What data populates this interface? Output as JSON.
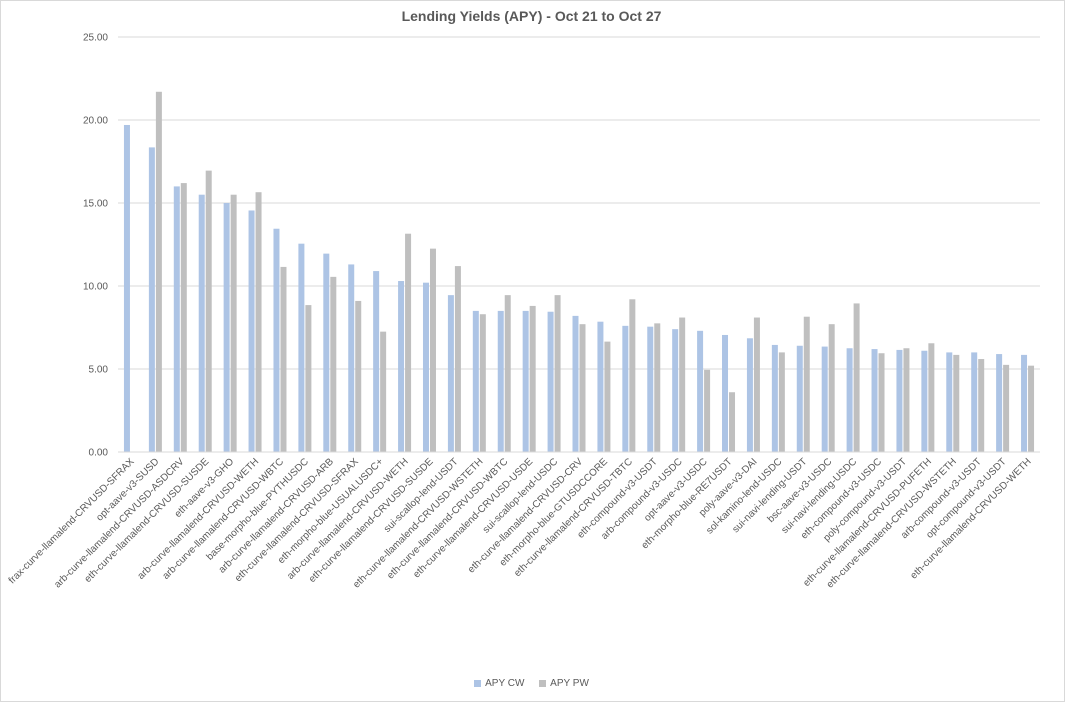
{
  "chart_data": {
    "type": "bar",
    "title": "Lending Yields (APY) - Oct 21 to Oct 27",
    "xlabel": "",
    "ylabel": "",
    "ylim": [
      0,
      25
    ],
    "yticks": [
      "0.00",
      "5.00",
      "10.00",
      "15.00",
      "20.00",
      "25.00"
    ],
    "grid": true,
    "legend_position": "bottom",
    "categories": [
      "frax-curve-llamalend-CRVUSD-SFRAX",
      "opt-aave-v3-SUSD",
      "arb-curve-llamalend-CRVUSD-ASDCRV",
      "eth-curve-llamalend-CRVUSD-SUSDE",
      "eth-aave-v3-GHO",
      "arb-curve-llamalend-CRVUSD-WETH",
      "arb-curve-llamalend-CRVUSD-WBTC",
      "base-morpho-blue-PYTHUSDC",
      "arb-curve-llamalend-CRVUSD-ARB",
      "eth-curve-llamalend-CRVUSD-SFRAX",
      "eth-morpho-blue-USUALUSDC+",
      "arb-curve-llamalend-CRVUSD-WETH",
      "eth-curve-llamalend-CRVUSD-SUSDE",
      "sui-scallop-lend-USDT",
      "eth-curve-llamalend-CRVUSD-WSTETH",
      "eth-curve-llamalend-CRVUSD-WBTC",
      "eth-curve-llamalend-CRVUSD-USDE",
      "sui-scallop-lend-USDC",
      "eth-curve-llamalend-CRVUSD-CRV",
      "eth-morpho-blue-GTUSDCCORE",
      "eth-curve-llamalend-CRVUSD-TBTC",
      "eth-compound-v3-USDT",
      "arb-compound-v3-USDC",
      "opt-aave-v3-USDC",
      "eth-morpho-blue-RE7USDT",
      "poly-aave-v3-DAI",
      "sol-kamino-lend-USDC",
      "sui-navi-lending-USDT",
      "bsc-aave-v3-USDC",
      "sui-navi-lending-USDC",
      "eth-compound-v3-USDC",
      "poly-compound-v3-USDT",
      "eth-curve-llamalend-CRVUSD-PUFETH",
      "eth-curve-llamalend-CRVUSD-WSTETH",
      "arb-compound-v3-USDT",
      "opt-compound-v3-USDT",
      "eth-curve-llamalend-CRVUSD-WETH"
    ],
    "series": [
      {
        "name": "APY CW",
        "color": "#adc4e5",
        "values": [
          19.7,
          18.35,
          16.0,
          15.5,
          15.0,
          14.55,
          13.45,
          12.55,
          11.95,
          11.3,
          10.9,
          10.3,
          10.2,
          9.45,
          8.5,
          8.5,
          8.5,
          8.45,
          8.2,
          7.85,
          7.6,
          7.55,
          7.4,
          7.3,
          7.05,
          6.85,
          6.45,
          6.4,
          6.35,
          6.25,
          6.2,
          6.15,
          6.1,
          6.0,
          6.0,
          5.9,
          5.85
        ]
      },
      {
        "name": "APY PW",
        "color": "#bfbfbf",
        "values": [
          null,
          21.7,
          16.2,
          16.95,
          15.5,
          15.65,
          11.15,
          8.85,
          10.55,
          9.1,
          7.25,
          13.15,
          12.25,
          11.2,
          8.3,
          9.45,
          8.8,
          9.45,
          7.7,
          6.65,
          9.2,
          7.75,
          8.1,
          4.95,
          3.6,
          8.1,
          6.0,
          8.15,
          7.7,
          8.95,
          5.95,
          6.25,
          6.55,
          5.85,
          5.6,
          5.25,
          5.2
        ]
      }
    ]
  }
}
